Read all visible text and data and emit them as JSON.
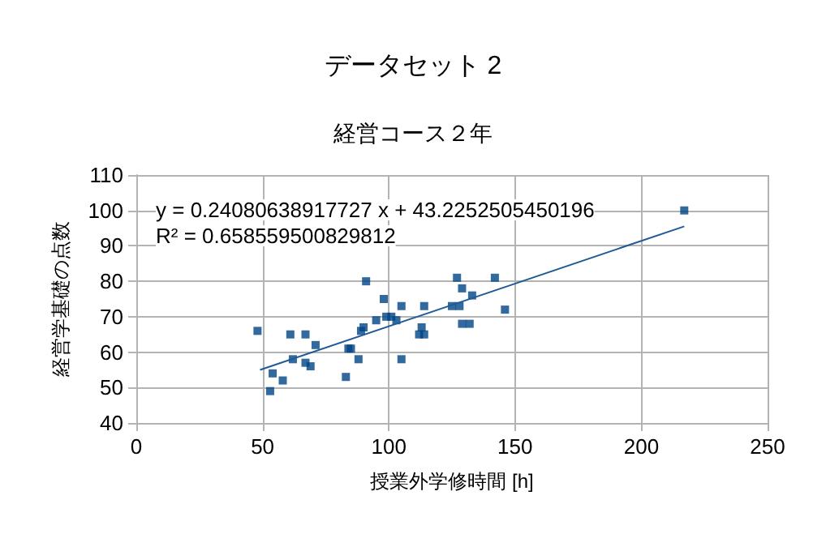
{
  "chart_data": {
    "type": "scatter",
    "title": "データセット 2",
    "subtitle": "経営コース２年",
    "xlabel": "授業外学修時間 [h]",
    "ylabel": "経営学基礎の点数",
    "annotations": [
      "y = 0.24080638917727 x + 43.2252505450196",
      "R² = 0.658559500829812"
    ],
    "series": [
      {
        "marker": "square",
        "color": "#004586",
        "x": [
          48,
          53,
          54,
          58,
          61,
          62,
          67,
          67,
          69,
          71,
          83,
          84,
          85,
          88,
          89,
          90,
          91,
          95,
          98,
          99,
          101,
          103,
          105,
          105,
          112,
          113,
          114,
          114,
          125,
          128,
          127,
          129,
          129,
          132,
          133,
          142,
          146,
          217
        ],
        "values": [
          66,
          49,
          54,
          52,
          65,
          58,
          65,
          57,
          56,
          62,
          53,
          61,
          61,
          58,
          66,
          67,
          80,
          69,
          75,
          70,
          70,
          69,
          73,
          58,
          65,
          67,
          65,
          73,
          73,
          73,
          81,
          78,
          68,
          68,
          76,
          81,
          72,
          100
        ]
      },
      {
        "type": "line",
        "marker": "none",
        "color": "#1f5a96",
        "x": [
          49,
          217
        ],
        "values": [
          55,
          95.5
        ]
      }
    ],
    "xlim": [
      0,
      250
    ],
    "xticks": [
      0,
      50,
      100,
      150,
      200,
      250
    ],
    "ylim": [
      40,
      110
    ],
    "yticks": [
      40,
      50,
      60,
      70,
      80,
      90,
      100,
      110
    ],
    "grid": true,
    "line_style": "solid"
  }
}
